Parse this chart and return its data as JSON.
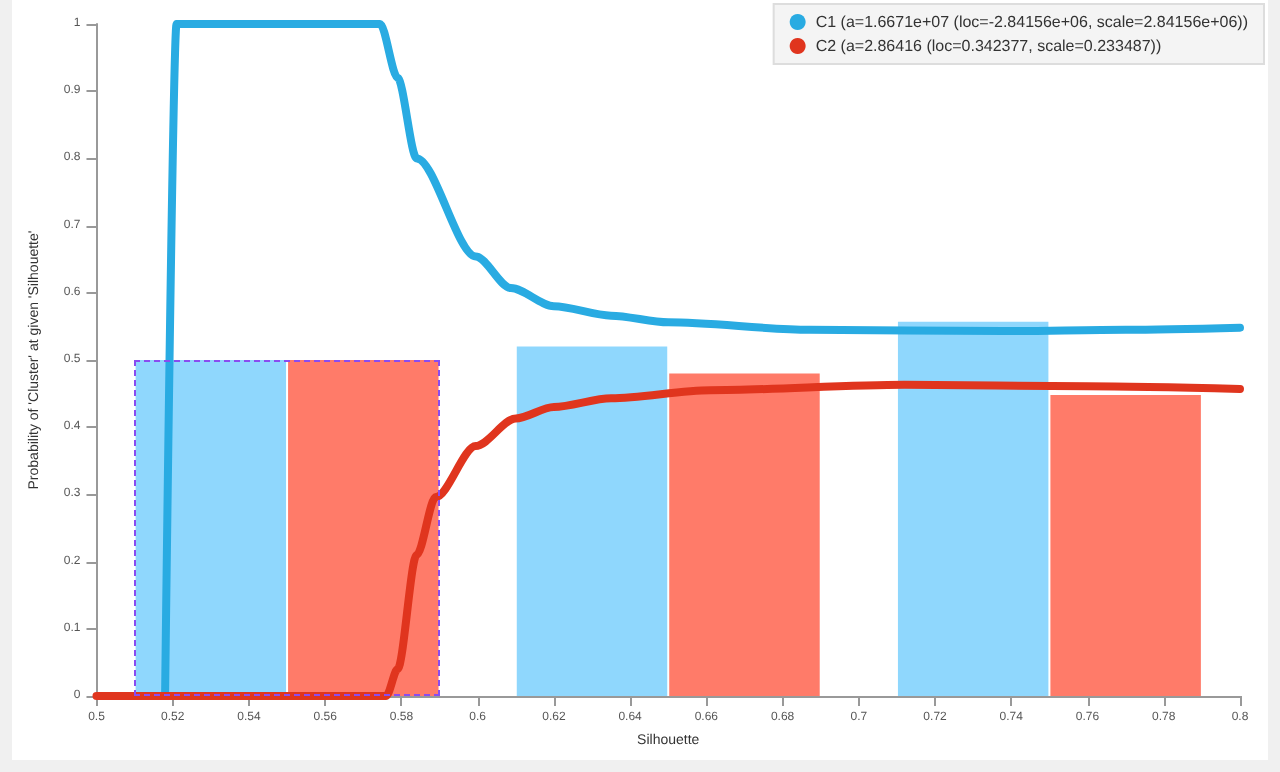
{
  "chart_data": {
    "type": "line",
    "xlabel": "Silhouette",
    "ylabel": "Probability of 'Cluster' at given 'Silhouette'",
    "xlim": [
      0.5,
      0.8
    ],
    "xticks": [
      0.5,
      0.52,
      0.54,
      0.56,
      0.58,
      0.6,
      0.62,
      0.64,
      0.66,
      0.68,
      0.7,
      0.72,
      0.74,
      0.76,
      0.78,
      0.8
    ],
    "ylim": [
      0,
      1
    ],
    "yticks": [
      0,
      0.1,
      0.2,
      0.3,
      0.4,
      0.5,
      0.6,
      0.7,
      0.8,
      0.9,
      1
    ],
    "grid": false,
    "legend": "top right",
    "marker": "none",
    "line_style": "solid",
    "series": [
      {
        "type": "histogram",
        "color": "#8fd7fd",
        "bins": [
          0.51,
          0.55,
          0.61,
          0.65,
          0.71,
          0.75
        ],
        "values": [
          0.5,
          null,
          0.52,
          null,
          0.557
        ]
      },
      {
        "type": "histogram",
        "color": "#ff7b69",
        "bins": [
          0.55,
          0.59,
          0.65,
          0.69,
          0.75,
          0.79
        ],
        "values": [
          0.5,
          null,
          0.48,
          null,
          0.448
        ]
      },
      {
        "name": "C1 (a=1.6671e+07 (loc=-2.84156e+06, scale=2.84156e+06))",
        "color": "#29abe2",
        "x": [
          0.518,
          0.521,
          0.545,
          0.5744,
          0.579,
          0.584,
          0.5995,
          0.6087,
          0.62,
          0.635,
          0.65,
          0.687,
          0.738,
          0.77,
          0.8
        ],
        "values": [
          0,
          1,
          1,
          1,
          0.92,
          0.8,
          0.654,
          0.607,
          0.58,
          0.566,
          0.556,
          0.545,
          0.543,
          0.545,
          0.548
        ]
      },
      {
        "name": "C2 (a=2.86416 (loc=0.342377, scale=0.233487))",
        "color": "#e0351e",
        "x": [
          0.5,
          0.54,
          0.576,
          0.579,
          0.584,
          0.589,
          0.5995,
          0.61,
          0.62,
          0.635,
          0.661,
          0.712,
          0.76,
          0.8
        ],
        "values": [
          0,
          0,
          0,
          0.04,
          0.21,
          0.296,
          0.372,
          0.413,
          0.43,
          0.443,
          0.455,
          0.463,
          0.461,
          0.457
        ]
      }
    ]
  }
}
